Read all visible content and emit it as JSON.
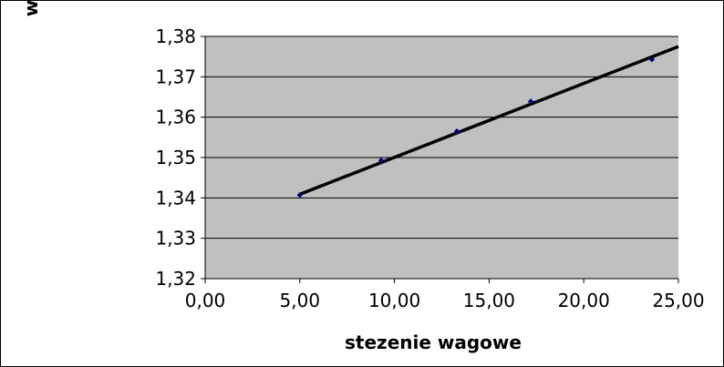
{
  "chart_data": {
    "type": "scatter",
    "title": "",
    "xlabel": "stezenie wagowe",
    "ylabel": "w",
    "xlim": [
      0,
      25
    ],
    "ylim": [
      1.32,
      1.38
    ],
    "x_ticks": [
      0,
      5,
      10,
      15,
      20,
      25
    ],
    "y_ticks": [
      1.32,
      1.33,
      1.34,
      1.35,
      1.36,
      1.37,
      1.38
    ],
    "x_tick_labels": [
      "0,00",
      "5,00",
      "10,00",
      "15,00",
      "20,00",
      "25,00"
    ],
    "y_tick_labels": [
      "1,32",
      "1,33",
      "1,34",
      "1,35",
      "1,36",
      "1,37",
      "1,38"
    ],
    "grid": "horizontal",
    "legend": "none",
    "series": [
      {
        "x": [
          5.0,
          9.3,
          13.3,
          17.2,
          23.6
        ],
        "y": [
          1.3407,
          1.3493,
          1.3565,
          1.3639,
          1.3743
        ]
      }
    ],
    "trendline": {
      "type": "linear",
      "x": [
        5.0,
        25.0
      ],
      "y": [
        1.3409,
        1.3775
      ]
    },
    "colors": {
      "plot_background": "#c0c0c0",
      "gridline": "#000000",
      "marker": "#000080",
      "trendline": "#000000"
    }
  }
}
